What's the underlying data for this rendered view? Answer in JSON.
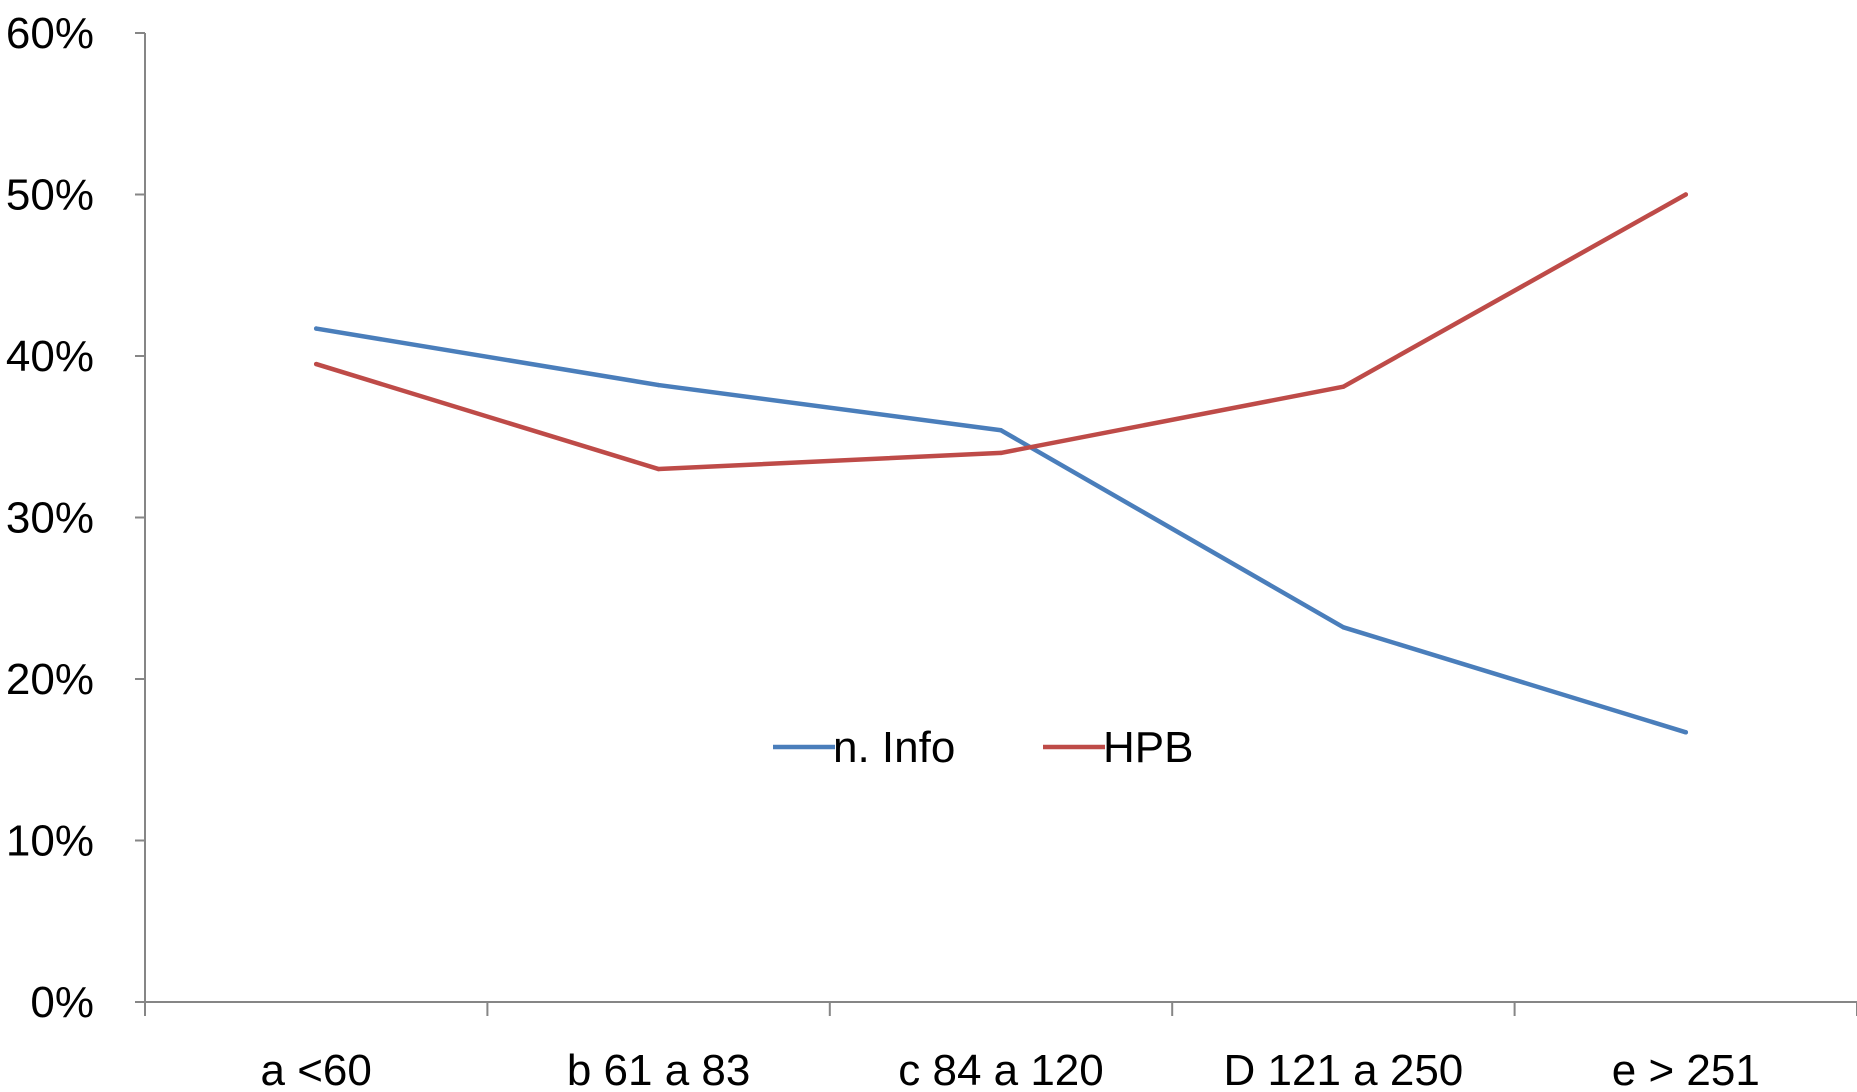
{
  "chart_data": {
    "type": "line",
    "categories": [
      "a <60",
      "b 61 a 83",
      "c 84 a 120",
      "D 121 a 250",
      "e > 251"
    ],
    "series": [
      {
        "name": "n. Info",
        "color": "#4a7ebb",
        "values": [
          41.7,
          38.2,
          35.4,
          23.2,
          16.7
        ]
      },
      {
        "name": "HPB",
        "color": "#be4b48",
        "values": [
          39.5,
          33.0,
          34.0,
          38.1,
          50.0
        ]
      }
    ],
    "ylim": [
      0,
      60
    ],
    "yticks": [
      "0%",
      "10%",
      "20%",
      "30%",
      "40%",
      "50%",
      "60%"
    ],
    "title": "",
    "xlabel": "",
    "ylabel": "",
    "grid": false,
    "legend_position": "center"
  }
}
